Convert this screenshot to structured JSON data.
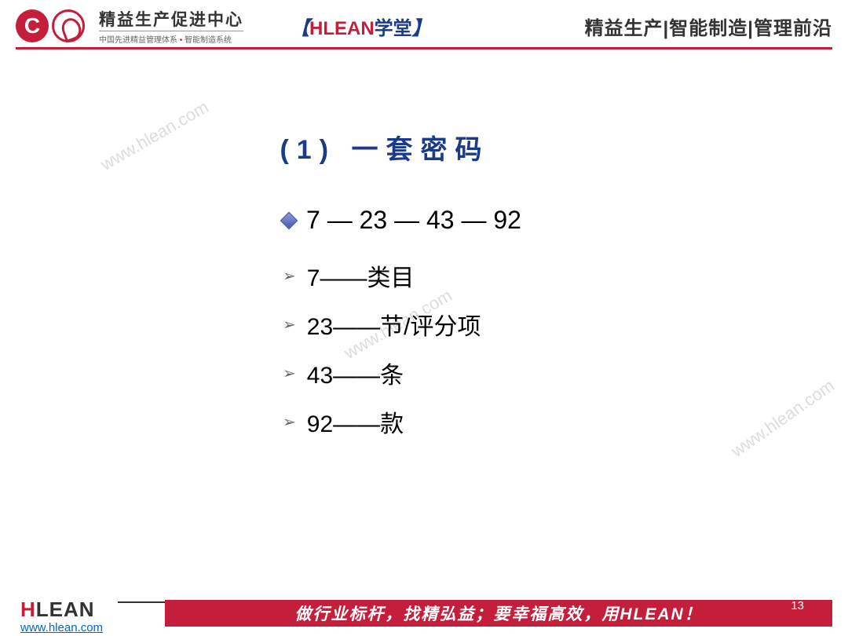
{
  "header": {
    "company_main": "精益生产促进中心",
    "company_sub_1": "中国先进精益管理体系",
    "company_sub_2": "智能制造系统",
    "bracket_left": "【",
    "brand": "HLEAN",
    "xuetang": "学堂",
    "bracket_right": "】",
    "right_text": "精益生产|智能制造|管理前沿"
  },
  "content": {
    "title_prefix": "(1)",
    "title_text": "一套密码",
    "main_code": "7 — 23 — 43 — 92",
    "items": [
      {
        "num": "7",
        "dash": "——",
        "label": "类目"
      },
      {
        "num": "23",
        "dash": "——",
        "label": "节/评分项"
      },
      {
        "num": "43",
        "dash": "——",
        "label": "条"
      },
      {
        "num": "92",
        "dash": "——",
        "label": "款"
      }
    ]
  },
  "watermark": "www.hlean.com",
  "footer": {
    "logo_h": "H",
    "logo_lean": "LEAN",
    "url": "www.hlean.com",
    "slogan": "做行业标杆，找精弘益；要幸福高效，用HLEAN！",
    "page": "13"
  },
  "colors": {
    "brand_red": "#c41e3a",
    "title_blue": "#1a3a8a",
    "text_black": "#000000",
    "link_blue": "#0066cc",
    "watermark_gray": "#dddddd"
  }
}
